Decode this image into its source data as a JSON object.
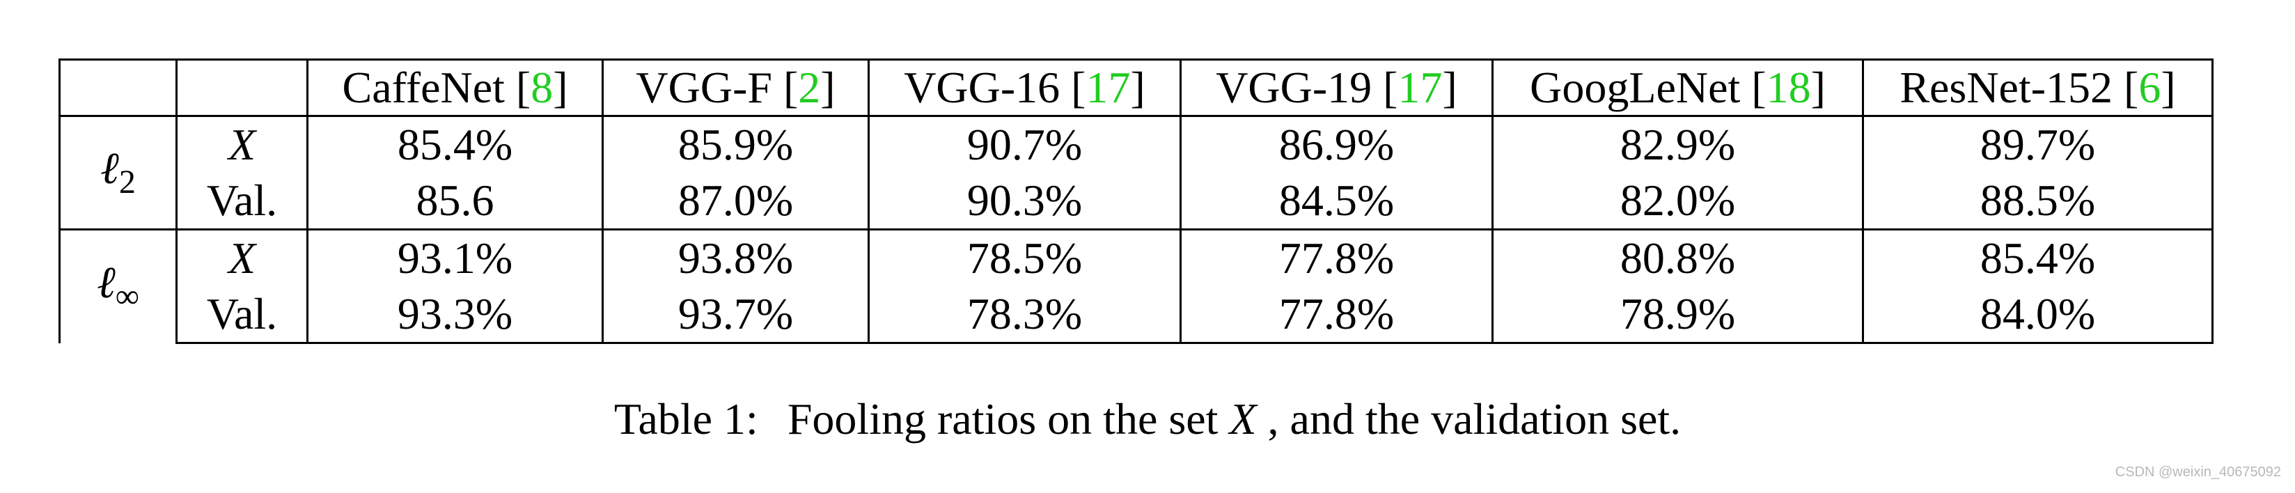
{
  "table": {
    "models": [
      {
        "name": "CaffeNet",
        "ref": "8"
      },
      {
        "name": "VGG-F",
        "ref": "2"
      },
      {
        "name": "VGG-16",
        "ref": "17"
      },
      {
        "name": "VGG-19",
        "ref": "17"
      },
      {
        "name": "GoogLeNet",
        "ref": "18"
      },
      {
        "name": "ResNet-152",
        "ref": "6"
      }
    ],
    "groups": [
      {
        "norm_symbol": "ℓ",
        "norm_subscript": "2",
        "rows": [
          {
            "label": "X",
            "label_italic": true,
            "values": [
              "85.4%",
              "85.9%",
              "90.7%",
              "86.9%",
              "82.9%",
              "89.7%"
            ]
          },
          {
            "label": "Val.",
            "label_italic": false,
            "values": [
              "85.6",
              "87.0%",
              "90.3%",
              "84.5%",
              "82.0%",
              "88.5%"
            ]
          }
        ]
      },
      {
        "norm_symbol": "ℓ",
        "norm_subscript": "∞",
        "rows": [
          {
            "label": "X",
            "label_italic": true,
            "values": [
              "93.1%",
              "93.8%",
              "78.5%",
              "77.8%",
              "80.8%",
              "85.4%"
            ]
          },
          {
            "label": "Val.",
            "label_italic": false,
            "values": [
              "93.3%",
              "93.7%",
              "78.3%",
              "77.8%",
              "78.9%",
              "84.0%"
            ]
          }
        ]
      }
    ]
  },
  "caption": {
    "prefix": "Table 1:",
    "text_before": "Fooling ratios on the set ",
    "math": "X",
    "text_after": ", and the validation set."
  },
  "watermark": "CSDN @weixin_40675092",
  "colors": {
    "reference": "#22cc22",
    "text": "#000000",
    "watermark": "#b8b8b8"
  }
}
